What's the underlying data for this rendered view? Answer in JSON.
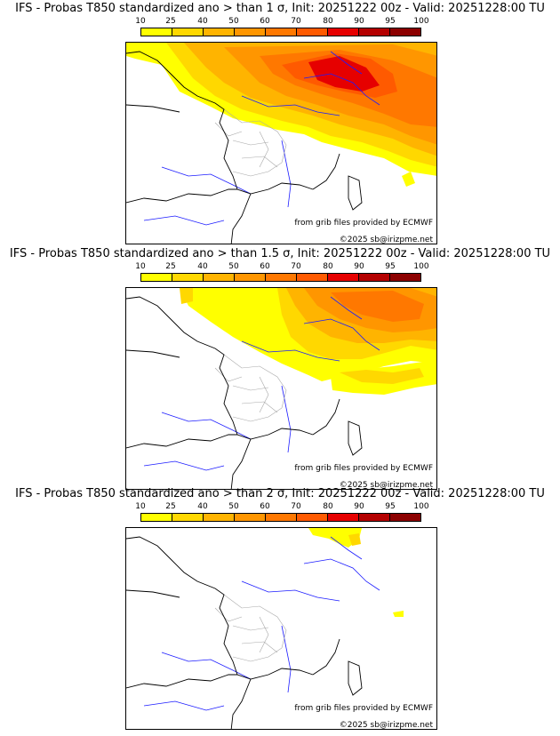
{
  "colorbar": {
    "labels": [
      "10",
      "25",
      "40",
      "50",
      "60",
      "70",
      "80",
      "90",
      "95",
      "100"
    ],
    "colors": [
      "#ffff00",
      "#ffd800",
      "#ffb400",
      "#ff9600",
      "#ff7800",
      "#ff5a00",
      "#e60000",
      "#b40000",
      "#8c0000"
    ]
  },
  "colors": {
    "coast": "#000000",
    "rivers": "#1c1cff",
    "borders": "#a8a8a8"
  },
  "panels": [
    {
      "title": "IFS - Probas T850  standardized ano > than 1 σ, Init: 20251222 00z - Valid: 20251228:00 TU",
      "source": "from grib files provided by ECMWF",
      "copyright": "©2025 sb@irizpme.net"
    },
    {
      "title": "IFS - Probas T850  standardized ano > than 1.5 σ, Init: 20251222 00z - Valid: 20251228:00 TU",
      "source": "from grib files provided by ECMWF",
      "copyright": "©2025 sb@irizpme.net"
    },
    {
      "title": "IFS - Probas T850  standardized ano > than 2 σ, Init: 20251222 00z - Valid: 20251228:00 TU",
      "source": "from grib files provided by ECMWF",
      "copyright": "©2025 sb@irizpme.net"
    }
  ]
}
